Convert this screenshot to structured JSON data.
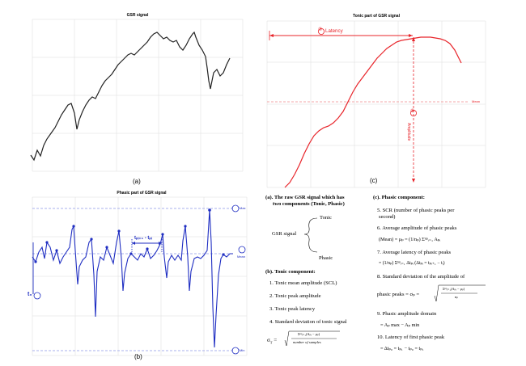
{
  "panel_a": {
    "title": "GSR signal",
    "caption": "(a)"
  },
  "panel_b": {
    "title": "Phasic part of GSR signal",
    "caption": "(b)",
    "label_t0": "t₀",
    "badge_t0": "①",
    "label_interval": "tₚᵢ₊₁ - tₚᵢ",
    "badge_max": "⑤",
    "label_max": "Max",
    "badge_mean": "②",
    "label_mean": "Mean",
    "badge_min": "⑤",
    "label_min": "Min",
    "colors": {
      "signal": "#1f2ec2",
      "dashed": "#8f97e6"
    }
  },
  "panel_c": {
    "title": "Tonic part of GSR signal",
    "caption": "(c)",
    "badge_latency": "③",
    "label_latency": "Latency",
    "badge_amplitude": "②",
    "label_amplitude": "Amplitude",
    "label_mean": "Mean",
    "colors": {
      "signal": "#e8242a",
      "dashed": "#f08a8c"
    }
  },
  "legend_a": {
    "heading_1": "(a). The raw GSR signal which has",
    "heading_2": "two components (Tonic, Phasic)",
    "root": "GSR signal",
    "branch_top": "Tonic",
    "branch_bottom": "Phasic"
  },
  "legend_b": {
    "heading": "(b). Tonic component:",
    "items": [
      "1. Tonic mean amplitude (SCL)",
      "2. Tonic peak amplitude",
      "3. Tonic peak latency",
      "4. Standard deviation of tonic signal"
    ],
    "sigma_label": "σ",
    "sigma_sub": "T",
    "sigma_eq": " = ",
    "sigma_num": "Σⁿᵖᵢ₌₁(Aₚᵢ − μₚ)",
    "sigma_den": "number of samples"
  },
  "legend_c": {
    "heading": "(c). Phasic component:",
    "item5_1": "5. SCR (number of phasic peaks per",
    "item5_2": "second)",
    "item6": "6. Average amplitude of phasic peaks",
    "item6_eq": "(Mean) = μₚ = (1/nₚ) Σⁿᵖᵢ₌₁ Aₚᵢ",
    "item7": "7. Average latency of phasic peaks",
    "item7_eq": "= (1/nₚ) Σⁿᵖᵢ₌₁ Δtₚᵢ (Δtₚᵢ = tₚᵢ₊₁ − tᵢ)",
    "item8_1": "8. Standard deviation of the amplitude of",
    "item8_2": "phasic peaks = σₚ =",
    "item8_num": "Σⁿᵖᵢ₌₁(Aₚᵢ − μₚ)",
    "item8_den": "nₚ",
    "item9": "9. Phasic amplitude domain",
    "item9_eq": "= Aₚ max − Aₚ min",
    "item10": "10. Latency of first phasic peak",
    "item10_eq": "= Δtₚ₀ = tₚ₁ − tₚ₀ = tₚ₁"
  }
}
